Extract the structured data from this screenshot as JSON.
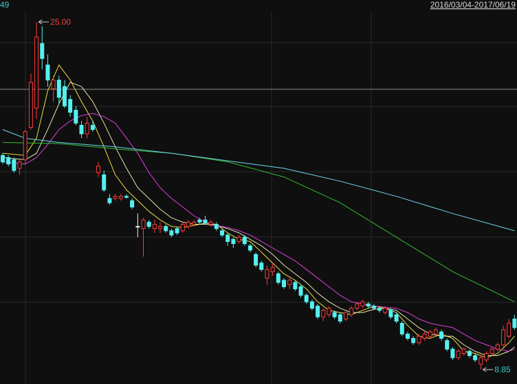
{
  "chart_data": {
    "type": "candlestick",
    "corner_label": "49",
    "date_range": "2016/03/04-2017/06/19",
    "max_label": "25.00",
    "min_label": "8.85",
    "ylim": [
      8.18,
      26.02
    ],
    "up_color": "#ff3c3c",
    "down_color": "#54f0f0",
    "flat_color": "#f0f0f0",
    "open": [
      18.8,
      18.7,
      18.6,
      18.2,
      18.6,
      20.1,
      21.0,
      24.0,
      23.0,
      21.9,
      22.3,
      22.0,
      21.4,
      20.9,
      20.2,
      19.8,
      20.2,
      18.0,
      17.9,
      16.8,
      16.8,
      16.8,
      16.9,
      16.7,
      15.5,
      15.4,
      15.7,
      15.4,
      15.4,
      15.5,
      15.3,
      15.4,
      15.3,
      15.5,
      15.6,
      15.8,
      15.8,
      15.6,
      15.6,
      15.3,
      15.1,
      14.9,
      14.8,
      15.0,
      14.6,
      14.2,
      13.8,
      13.1,
      13.4,
      13.3,
      13.0,
      12.8,
      12.9,
      12.7,
      12.3,
      12.0,
      11.8,
      11.3,
      11.4,
      11.5,
      11.4,
      11.2,
      11.4,
      11.7,
      11.8,
      11.9,
      11.8,
      11.7,
      11.5,
      11.6,
      11.4,
      11.0,
      10.5,
      10.3,
      10.1,
      10.3,
      10.4,
      10.5,
      10.6,
      10.2,
      9.8,
      9.4,
      9.6,
      9.7,
      9.5,
      9.1,
      9.3,
      9.6,
      9.8,
      10.0,
      10.4,
      11.2
    ],
    "high": [
      18.9,
      18.8,
      18.7,
      18.6,
      20.0,
      22.6,
      25.0,
      24.8,
      23.5,
      22.5,
      22.5,
      22.3,
      21.6,
      21.1,
      20.4,
      20.6,
      20.4,
      18.5,
      18.1,
      17.0,
      17.0,
      17.0,
      17.0,
      16.8,
      16.1,
      15.9,
      15.8,
      15.8,
      15.7,
      15.6,
      15.4,
      15.5,
      15.7,
      15.8,
      15.8,
      15.9,
      16.0,
      15.8,
      15.7,
      15.4,
      15.2,
      15.0,
      15.1,
      15.1,
      14.7,
      14.3,
      13.9,
      13.7,
      13.8,
      13.4,
      13.1,
      13.2,
      13.0,
      12.8,
      12.4,
      12.1,
      11.9,
      11.7,
      11.8,
      11.6,
      11.5,
      11.6,
      11.8,
      12.0,
      12.1,
      12.0,
      11.9,
      11.8,
      11.8,
      11.7,
      11.5,
      11.1,
      10.6,
      10.4,
      10.5,
      10.6,
      10.7,
      10.8,
      10.7,
      10.3,
      9.9,
      9.8,
      9.9,
      9.8,
      9.6,
      9.5,
      9.7,
      9.9,
      10.1,
      10.9,
      11.2,
      11.4
    ],
    "low": [
      18.4,
      18.3,
      18.0,
      17.9,
      18.4,
      20.0,
      20.5,
      22.8,
      22.0,
      21.3,
      21.2,
      21.0,
      20.6,
      20.2,
      19.6,
      19.6,
      19.9,
      17.8,
      17.1,
      16.5,
      16.7,
      16.7,
      16.8,
      16.3,
      15.0,
      14.1,
      15.4,
      15.2,
      15.2,
      15.2,
      15.0,
      15.1,
      15.2,
      15.4,
      15.5,
      15.6,
      15.6,
      15.5,
      15.3,
      15.0,
      14.6,
      14.5,
      14.7,
      14.6,
      14.3,
      13.6,
      13.4,
      12.8,
      13.2,
      12.8,
      12.6,
      12.6,
      12.5,
      12.2,
      11.9,
      11.6,
      11.2,
      11.1,
      11.3,
      11.2,
      11.0,
      11.1,
      11.3,
      11.6,
      11.7,
      11.7,
      11.6,
      11.5,
      11.4,
      11.2,
      11.0,
      10.4,
      10.2,
      10.0,
      10.0,
      10.2,
      10.3,
      10.4,
      10.2,
      9.7,
      9.3,
      9.3,
      9.5,
      9.4,
      9.2,
      8.85,
      9.2,
      9.5,
      9.7,
      9.9,
      10.3,
      10.7
    ],
    "close": [
      18.5,
      18.4,
      18.1,
      18.5,
      19.9,
      22.2,
      24.3,
      23.3,
      22.3,
      22.3,
      21.5,
      21.1,
      20.8,
      20.3,
      19.8,
      20.3,
      20.0,
      18.3,
      17.2,
      16.6,
      16.9,
      16.9,
      16.85,
      16.4,
      15.5,
      15.8,
      15.5,
      15.6,
      15.5,
      15.3,
      15.1,
      15.2,
      15.6,
      15.7,
      15.7,
      15.7,
      15.65,
      15.7,
      15.4,
      15.1,
      14.8,
      14.7,
      15.0,
      14.7,
      14.4,
      13.7,
      13.5,
      13.5,
      13.6,
      12.9,
      12.7,
      13.0,
      12.6,
      12.3,
      12.0,
      11.7,
      11.3,
      11.6,
      11.7,
      11.3,
      11.1,
      11.5,
      11.7,
      11.9,
      12.0,
      11.8,
      11.7,
      11.6,
      11.7,
      11.3,
      11.1,
      10.5,
      10.3,
      10.1,
      10.4,
      10.5,
      10.6,
      10.7,
      10.3,
      9.8,
      9.4,
      9.7,
      9.8,
      9.5,
      9.3,
      9.4,
      9.6,
      9.8,
      10.0,
      10.7,
      11.0,
      10.8
    ],
    "lines": [
      {
        "color": "#f0e040",
        "x": [
          0,
          4,
          6,
          8,
          10,
          12,
          14,
          16,
          18,
          20,
          22,
          24,
          26,
          28,
          30,
          32,
          34,
          36,
          38,
          40,
          42,
          44,
          46,
          48,
          50,
          52,
          54,
          56,
          58,
          60,
          62,
          64,
          66,
          68,
          70,
          72,
          74,
          76,
          78,
          80,
          82,
          84,
          86,
          88,
          90,
          91
        ],
        "values": [
          18.9,
          18.8,
          19.6,
          21.8,
          23.0,
          22.3,
          21.3,
          20.4,
          19.2,
          17.9,
          17.2,
          16.7,
          16.2,
          15.8,
          15.5,
          15.45,
          15.55,
          15.65,
          15.6,
          15.2,
          14.9,
          14.8,
          14.3,
          13.8,
          13.3,
          13.0,
          12.6,
          12.0,
          11.6,
          11.5,
          11.4,
          11.6,
          11.8,
          11.7,
          11.5,
          10.9,
          10.4,
          10.3,
          10.5,
          10.3,
          9.7,
          9.6,
          9.4,
          9.6,
          10.1,
          10.4
        ]
      },
      {
        "color": "#e8e8b0",
        "x": [
          0,
          4,
          6,
          8,
          10,
          12,
          14,
          16,
          18,
          20,
          22,
          24,
          26,
          28,
          30,
          32,
          34,
          36,
          38,
          40,
          42,
          44,
          46,
          48,
          50,
          52,
          54,
          56,
          58,
          60,
          62,
          64,
          66,
          68,
          70,
          72,
          74,
          76,
          78,
          80,
          82,
          84,
          86,
          88,
          90,
          91
        ],
        "values": [
          18.7,
          18.6,
          18.9,
          20.0,
          21.2,
          22.2,
          22.0,
          21.3,
          20.3,
          19.2,
          18.2,
          17.3,
          16.8,
          16.3,
          15.9,
          15.7,
          15.6,
          15.6,
          15.55,
          15.4,
          15.2,
          14.9,
          14.6,
          14.2,
          13.7,
          13.3,
          12.9,
          12.4,
          12.0,
          11.7,
          11.5,
          11.5,
          11.65,
          11.7,
          11.6,
          11.2,
          10.8,
          10.5,
          10.4,
          10.4,
          10.0,
          9.7,
          9.5,
          9.5,
          9.7,
          9.9
        ]
      },
      {
        "color": "#e040e0",
        "x": [
          0,
          4,
          6,
          8,
          10,
          12,
          14,
          16,
          18,
          20,
          22,
          24,
          26,
          28,
          30,
          32,
          34,
          36,
          38,
          40,
          42,
          44,
          46,
          48,
          50,
          52,
          54,
          56,
          58,
          60,
          62,
          64,
          66,
          68,
          70,
          72,
          74,
          76,
          78,
          80,
          82,
          84,
          86,
          88,
          90,
          91
        ],
        "values": [
          18.5,
          18.4,
          18.7,
          19.3,
          20.0,
          20.4,
          20.65,
          20.75,
          20.6,
          20.3,
          19.6,
          18.9,
          18.0,
          17.3,
          16.8,
          16.4,
          16.0,
          15.7,
          15.55,
          15.45,
          15.3,
          15.1,
          14.8,
          14.5,
          14.2,
          13.9,
          13.5,
          13.1,
          12.7,
          12.3,
          12.0,
          11.9,
          11.8,
          11.75,
          11.7,
          11.5,
          11.2,
          11.0,
          10.9,
          10.8,
          10.5,
          10.2,
          10.0,
          9.8,
          9.7,
          9.8
        ]
      },
      {
        "color": "#30c030",
        "x": [
          0,
          10,
          20,
          30,
          40,
          50,
          60,
          70,
          80,
          91
        ],
        "values": [
          19.4,
          19.35,
          19.1,
          18.9,
          18.5,
          17.8,
          16.6,
          15.0,
          13.4,
          12.0
        ]
      },
      {
        "color": "#70d8f0",
        "x": [
          0,
          4,
          10,
          20,
          30,
          40,
          50,
          60,
          70,
          80,
          91
        ],
        "values": [
          20.0,
          19.6,
          19.4,
          19.2,
          18.9,
          18.55,
          18.2,
          17.6,
          16.9,
          16.1,
          15.3
        ]
      }
    ]
  }
}
